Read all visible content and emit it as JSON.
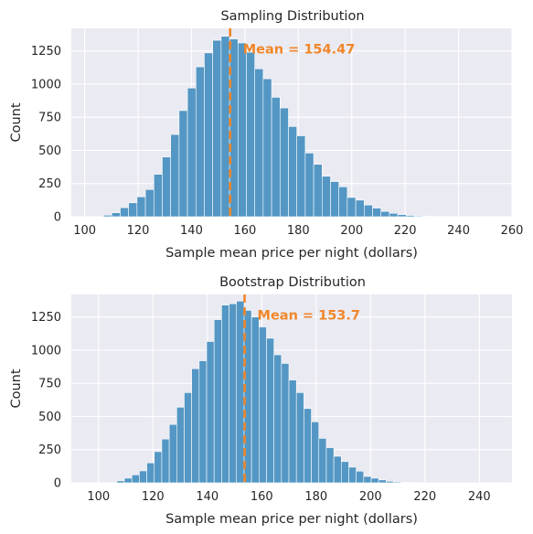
{
  "colors": {
    "bar": "#5497c4",
    "bar_edge": "#ffffff",
    "mean_line": "#f0862a",
    "panel_bg": "#eaeaf2",
    "grid": "#ffffff"
  },
  "chart_data": [
    {
      "type": "bar",
      "title": "Sampling Distribution",
      "xlabel": "Sample mean price per night (dollars)",
      "ylabel": "Count",
      "xlim": [
        95,
        260
      ],
      "ylim": [
        0,
        1420
      ],
      "xticks": [
        100,
        120,
        140,
        160,
        180,
        200,
        220,
        240,
        260
      ],
      "yticks": [
        0,
        250,
        500,
        750,
        1000,
        1250
      ],
      "grid": true,
      "bin_start": 107,
      "bin_width": 3.15,
      "values": [
        12,
        30,
        68,
        105,
        150,
        205,
        320,
        450,
        620,
        800,
        970,
        1130,
        1235,
        1330,
        1360,
        1340,
        1310,
        1240,
        1115,
        1040,
        900,
        820,
        680,
        610,
        480,
        395,
        305,
        265,
        225,
        145,
        125,
        88,
        65,
        40,
        26,
        16,
        10,
        6,
        3,
        2,
        2,
        1
      ],
      "mean": 154.47,
      "mean_label": "Mean = 154.47"
    },
    {
      "type": "bar",
      "title": "Bootstrap Distribution",
      "xlabel": "Sample mean price per night (dollars)",
      "ylabel": "Count",
      "xlim": [
        90,
        252
      ],
      "ylim": [
        0,
        1420
      ],
      "xticks": [
        100,
        120,
        140,
        160,
        180,
        200,
        220,
        240
      ],
      "yticks": [
        0,
        250,
        500,
        750,
        1000,
        1250
      ],
      "grid": true,
      "bin_start": 104,
      "bin_width": 2.75,
      "values": [
        5,
        15,
        35,
        60,
        90,
        150,
        235,
        330,
        440,
        570,
        680,
        860,
        920,
        1065,
        1230,
        1340,
        1350,
        1370,
        1300,
        1250,
        1175,
        1090,
        965,
        900,
        775,
        680,
        560,
        460,
        335,
        265,
        200,
        160,
        118,
        88,
        48,
        35,
        22,
        12,
        7,
        4,
        2,
        2,
        1,
        1,
        1,
        1,
        1,
        1,
        1,
        1
      ],
      "mean": 153.7,
      "mean_label": "Mean = 153.7"
    }
  ]
}
